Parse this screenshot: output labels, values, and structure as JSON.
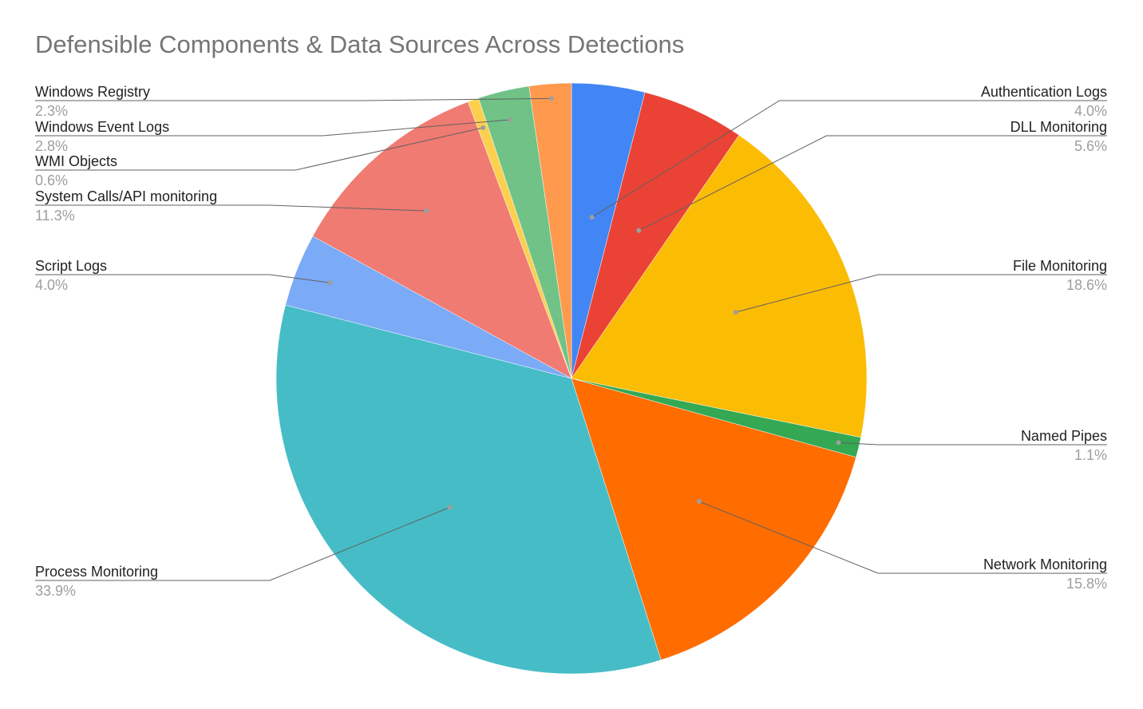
{
  "chart_data": {
    "type": "pie",
    "title": "Defensible Components & Data Sources Across Detections",
    "slices": [
      {
        "label": "Authentication Logs",
        "value": 4.0,
        "display": "4.0%",
        "color": "#4285f4"
      },
      {
        "label": "DLL Monitoring",
        "value": 5.6,
        "display": "5.6%",
        "color": "#ea4335"
      },
      {
        "label": "File Monitoring",
        "value": 18.6,
        "display": "18.6%",
        "color": "#fbbc04"
      },
      {
        "label": "Named Pipes",
        "value": 1.1,
        "display": "1.1%",
        "color": "#34a853"
      },
      {
        "label": "Network Monitoring",
        "value": 15.8,
        "display": "15.8%",
        "color": "#ff6d01"
      },
      {
        "label": "Process Monitoring",
        "value": 33.9,
        "display": "33.9%",
        "color": "#46bdc6"
      },
      {
        "label": "Script Logs",
        "value": 4.0,
        "display": "4.0%",
        "color": "#7baaf7"
      },
      {
        "label": "System Calls/API monitoring",
        "value": 11.3,
        "display": "11.3%",
        "color": "#f07b72"
      },
      {
        "label": "WMI Objects",
        "value": 0.6,
        "display": "0.6%",
        "color": "#fcd04f"
      },
      {
        "label": "Windows Event Logs",
        "value": 2.8,
        "display": "2.8%",
        "color": "#71c287"
      },
      {
        "label": "Windows Registry",
        "value": 2.3,
        "display": "2.3%",
        "color": "#ff994d"
      }
    ],
    "legend": "none",
    "label_style": "callout lines with label and percentage"
  }
}
